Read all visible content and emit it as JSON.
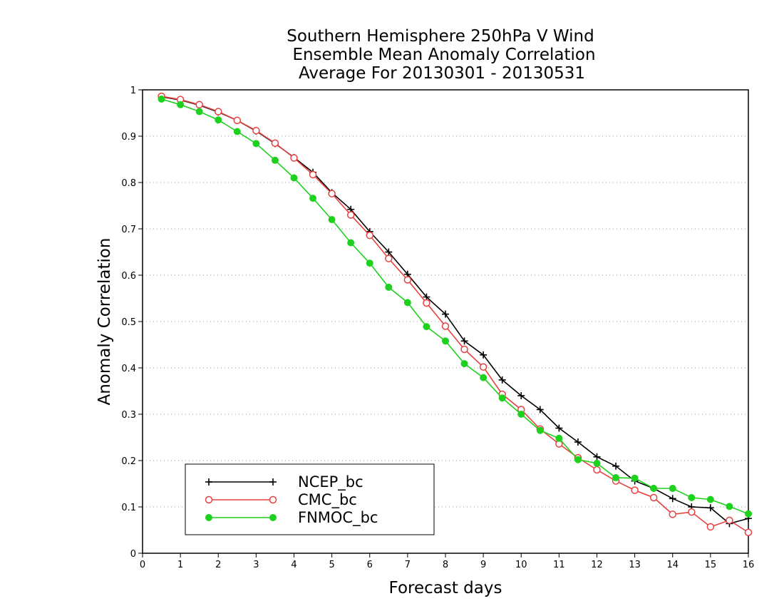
{
  "chart_data": {
    "type": "line",
    "title": [
      "Southern Hemisphere 250hPa V Wind",
      "Ensemble Mean Anomaly Correlation",
      "Average For 20130301 - 20130531"
    ],
    "xlabel": "Forecast days",
    "ylabel": "Anomaly Correlation",
    "xlim": [
      0,
      16
    ],
    "ylim": [
      0,
      1
    ],
    "xticks": [
      0,
      1,
      2,
      3,
      4,
      5,
      6,
      7,
      8,
      9,
      10,
      11,
      12,
      13,
      14,
      15,
      16
    ],
    "yticks": [
      0,
      0.1,
      0.2,
      0.3,
      0.4,
      0.5,
      0.6,
      0.7,
      0.8,
      0.9,
      1
    ],
    "ytick_labels": [
      "0",
      "0.1",
      "0.2",
      "0.3",
      "0.4",
      "0.5",
      "0.6",
      "0.7",
      "0.8",
      "0.9",
      "1"
    ],
    "grid": "horizontal dotted",
    "legend_position": "bottom-left",
    "x": [
      0.5,
      1,
      1.5,
      2,
      2.5,
      3,
      3.5,
      4,
      4.5,
      5,
      5.5,
      6,
      6.5,
      7,
      7.5,
      8,
      8.5,
      9,
      9.5,
      10,
      10.5,
      11,
      11.5,
      12,
      12.5,
      13,
      13.5,
      14,
      14.5,
      15,
      15.5,
      16
    ],
    "series": [
      {
        "name": "NCEP_bc",
        "color": "#000000",
        "marker": "plus",
        "values": [
          0.985,
          0.978,
          0.967,
          0.952,
          0.934,
          0.911,
          0.884,
          0.854,
          0.822,
          0.778,
          0.742,
          0.694,
          0.65,
          0.602,
          0.553,
          0.516,
          0.458,
          0.428,
          0.374,
          0.34,
          0.31,
          0.27,
          0.24,
          0.208,
          0.188,
          0.156,
          0.14,
          0.118,
          0.1,
          0.098,
          0.064,
          0.075
        ]
      },
      {
        "name": "CMC_bc",
        "color": "#e84040",
        "marker": "open-circle",
        "values": [
          0.986,
          0.979,
          0.968,
          0.953,
          0.934,
          0.912,
          0.885,
          0.853,
          0.817,
          0.776,
          0.73,
          0.686,
          0.636,
          0.59,
          0.54,
          0.49,
          0.44,
          0.402,
          0.343,
          0.31,
          0.268,
          0.236,
          0.206,
          0.18,
          0.156,
          0.136,
          0.12,
          0.084,
          0.089,
          0.057,
          0.071,
          0.045
        ]
      },
      {
        "name": "FNMOC_bc",
        "color": "#1fd11f",
        "marker": "filled-circle",
        "values": [
          0.98,
          0.968,
          0.953,
          0.935,
          0.91,
          0.884,
          0.848,
          0.81,
          0.766,
          0.72,
          0.67,
          0.626,
          0.574,
          0.541,
          0.489,
          0.458,
          0.409,
          0.379,
          0.335,
          0.3,
          0.265,
          0.248,
          0.202,
          0.194,
          0.163,
          0.162,
          0.14,
          0.14,
          0.12,
          0.116,
          0.101,
          0.085
        ]
      }
    ]
  }
}
